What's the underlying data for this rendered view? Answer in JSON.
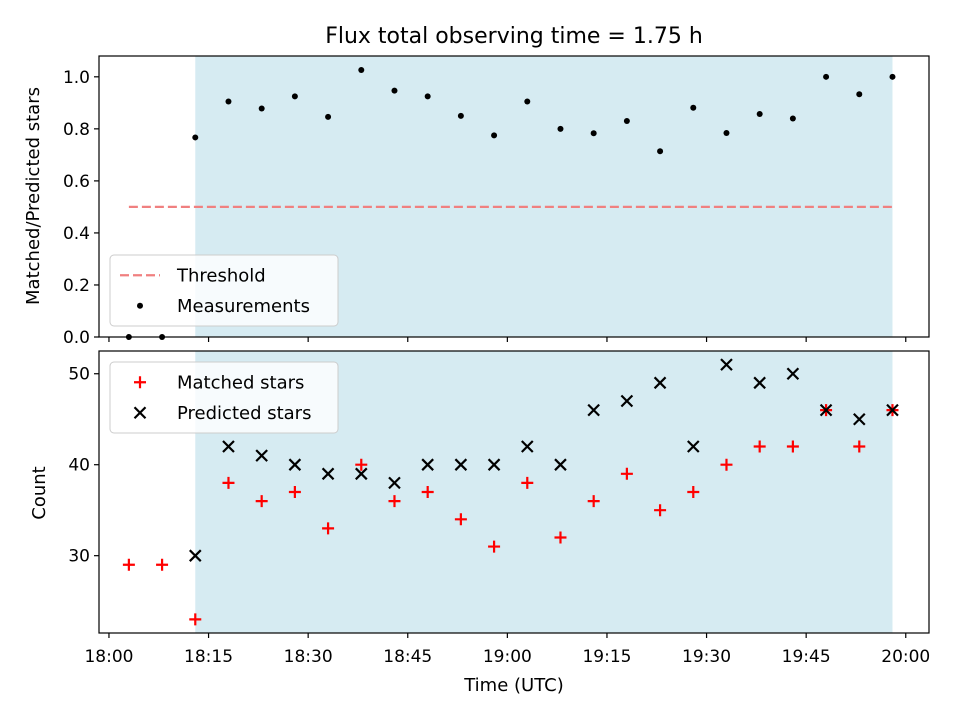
{
  "chart_data": {
    "type": "scatter",
    "title": "Flux total observing time = 1.75 h",
    "xlabel": "Time (UTC)",
    "x_tick_labels": [
      "18:00",
      "18:15",
      "18:30",
      "18:45",
      "19:00",
      "19:15",
      "19:30",
      "19:45",
      "20:00"
    ],
    "x_tick_minutes": [
      0,
      15,
      30,
      45,
      60,
      75,
      90,
      105,
      120
    ],
    "xlim_minutes": [
      -1.5,
      123.5
    ],
    "shaded_span_minutes": [
      13,
      118
    ],
    "shade_color": "#add8e6",
    "times": [
      "18:03",
      "18:08",
      "18:13",
      "18:18",
      "18:23",
      "18:28",
      "18:33",
      "18:38",
      "18:43",
      "18:48",
      "18:53",
      "18:58",
      "19:03",
      "19:08",
      "19:13",
      "19:18",
      "19:23",
      "19:28",
      "19:33",
      "19:38",
      "19:43",
      "19:48",
      "19:53",
      "19:58"
    ],
    "panels": [
      {
        "ylabel": "Matched/Predicted stars",
        "ylim": [
          0,
          1.08
        ],
        "y_ticks": [
          0.0,
          0.2,
          0.4,
          0.6,
          0.8,
          1.0
        ],
        "y_tick_labels": [
          "0.0",
          "0.2",
          "0.4",
          "0.6",
          "0.8",
          "1.0"
        ],
        "legend_location": "lower left",
        "threshold": {
          "name": "Threshold",
          "value": 0.5,
          "x_range": [
            "18:03",
            "19:58"
          ],
          "color": "#f08080"
        },
        "series": [
          {
            "name": "Measurements",
            "marker": "dot",
            "color": "#000000",
            "values": [
              0.0,
              0.0,
              0.767,
              0.905,
              0.878,
              0.925,
              0.846,
              1.026,
              0.947,
              0.925,
              0.85,
              0.775,
              0.905,
              0.8,
              0.783,
              0.83,
              0.714,
              0.881,
              0.784,
              0.857,
              0.84,
              1.0,
              0.933,
              1.0
            ]
          }
        ]
      },
      {
        "ylabel": "Count",
        "ylim": [
          21.5,
          52.5
        ],
        "y_ticks": [
          30,
          40,
          50
        ],
        "y_tick_labels": [
          "30",
          "40",
          "50"
        ],
        "legend_location": "upper left",
        "series": [
          {
            "name": "Matched stars",
            "marker": "plus",
            "color": "#ff0000",
            "values": [
              29,
              29,
              23,
              38,
              36,
              37,
              33,
              40,
              36,
              37,
              34,
              31,
              38,
              32,
              36,
              39,
              35,
              37,
              40,
              42,
              42,
              46,
              42,
              46
            ]
          },
          {
            "name": "Predicted stars",
            "marker": "x",
            "color": "#000000",
            "x_start_index": 2,
            "values": [
              30,
              42,
              41,
              40,
              39,
              39,
              38,
              40,
              40,
              40,
              42,
              40,
              46,
              47,
              49,
              42,
              51,
              49,
              50,
              46,
              45,
              46
            ]
          }
        ]
      }
    ]
  }
}
